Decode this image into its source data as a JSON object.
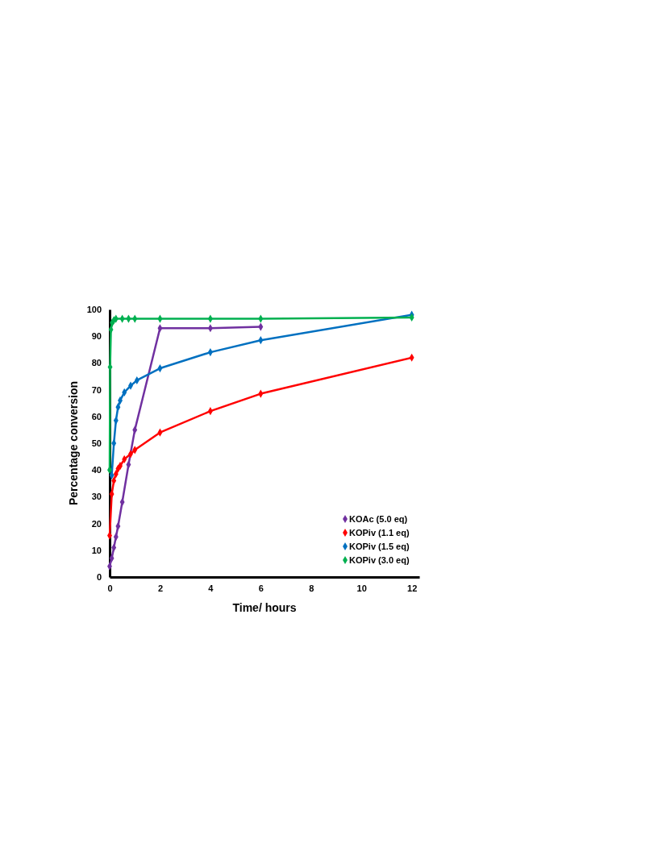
{
  "chart_data": {
    "type": "line",
    "xlabel": "Time/ hours",
    "ylabel": "Percentage conversion",
    "xlim": [
      0,
      12.3
    ],
    "xticks": [
      0,
      2,
      4,
      6,
      8,
      10,
      12
    ],
    "ylim": [
      0,
      100
    ],
    "yticks": [
      0,
      10,
      20,
      30,
      40,
      50,
      60,
      70,
      80,
      90,
      100
    ],
    "grid": false,
    "legend": "bottom right",
    "marker": "diamond",
    "line_style": "solid",
    "series": [
      {
        "name": "KOAc (5.0 eq)",
        "color": "#7030a0",
        "x": [
          0,
          0.083,
          0.167,
          0.25,
          0.333,
          0.5,
          0.75,
          1,
          2,
          4,
          6
        ],
        "values": [
          4,
          7,
          11,
          15,
          19,
          28,
          42,
          55,
          93,
          93,
          93.5
        ]
      },
      {
        "name": "KOPiv (1.1 eq)",
        "color": "#ff0000",
        "x": [
          0,
          0.083,
          0.167,
          0.25,
          0.333,
          0.417,
          0.583,
          0.833,
          1,
          2,
          4,
          6,
          12
        ],
        "values": [
          15.5,
          31,
          36,
          38.5,
          40.5,
          41.5,
          44,
          46,
          47.5,
          54,
          62,
          68.5,
          82
        ]
      },
      {
        "name": "KOPiv (1.5 eq)",
        "color": "#0070c0",
        "x": [
          0.083,
          0.167,
          0.25,
          0.333,
          0.417,
          0.583,
          0.833,
          1.083,
          2,
          4,
          6,
          12
        ],
        "values": [
          38,
          50,
          58.5,
          63.5,
          66,
          69,
          71.5,
          73.5,
          78,
          84,
          88.5,
          98
        ]
      },
      {
        "name": "KOPiv (3.0 eq)",
        "color": "#00b050",
        "x": [
          0,
          0.017,
          0.05,
          0.1,
          0.167,
          0.25,
          0.5,
          0.75,
          1,
          2,
          4,
          6,
          12
        ],
        "values": [
          40,
          78.5,
          92.5,
          95,
          96,
          96.5,
          96.5,
          96.5,
          96.5,
          96.5,
          96.5,
          96.5,
          97
        ]
      }
    ]
  }
}
